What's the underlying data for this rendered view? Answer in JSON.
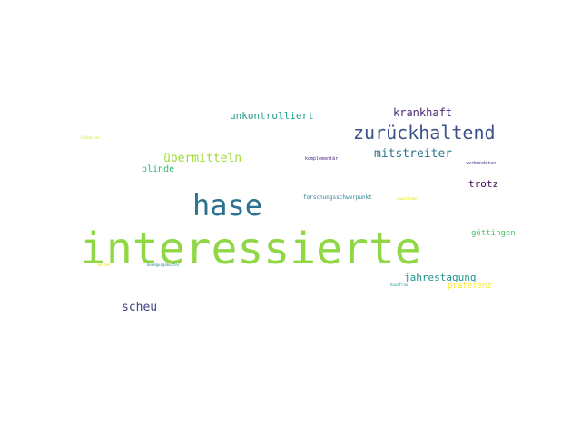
{
  "words": [
    {
      "text": "interessierte",
      "color": "#8fd744"
    },
    {
      "text": "hase",
      "color": "#2c728e"
    },
    {
      "text": "zurückhaltend",
      "color": "#3b528b"
    },
    {
      "text": "krankhaft",
      "color": "#482878"
    },
    {
      "text": "unkontrolliert",
      "color": "#1f9e89"
    },
    {
      "text": "mitstreiter",
      "color": "#2a788e"
    },
    {
      "text": "übermitteln",
      "color": "#a0da39"
    },
    {
      "text": "blinde",
      "color": "#35b779"
    },
    {
      "text": "trotz",
      "color": "#440154"
    },
    {
      "text": "göttingen",
      "color": "#4ac16d"
    },
    {
      "text": "jahrestagung",
      "color": "#21918c"
    },
    {
      "text": "präferenz",
      "color": "#fde725"
    },
    {
      "text": "scheu",
      "color": "#414487"
    },
    {
      "text": "forschungsschwerpunkt",
      "color": "#26828e"
    },
    {
      "text": "komplementär",
      "color": "#472d7b"
    },
    {
      "text": "verbündeten",
      "color": "#46327e"
    },
    {
      "text": "lückenlos",
      "color": "#d0e11c"
    },
    {
      "text": "unwirksam",
      "color": "#e5e419"
    },
    {
      "text": "bewegungsmuster",
      "color": "#25858e"
    },
    {
      "text": "hausfrau",
      "color": "#1f988b"
    },
    {
      "text": "körper",
      "color": "#dde318"
    }
  ]
}
